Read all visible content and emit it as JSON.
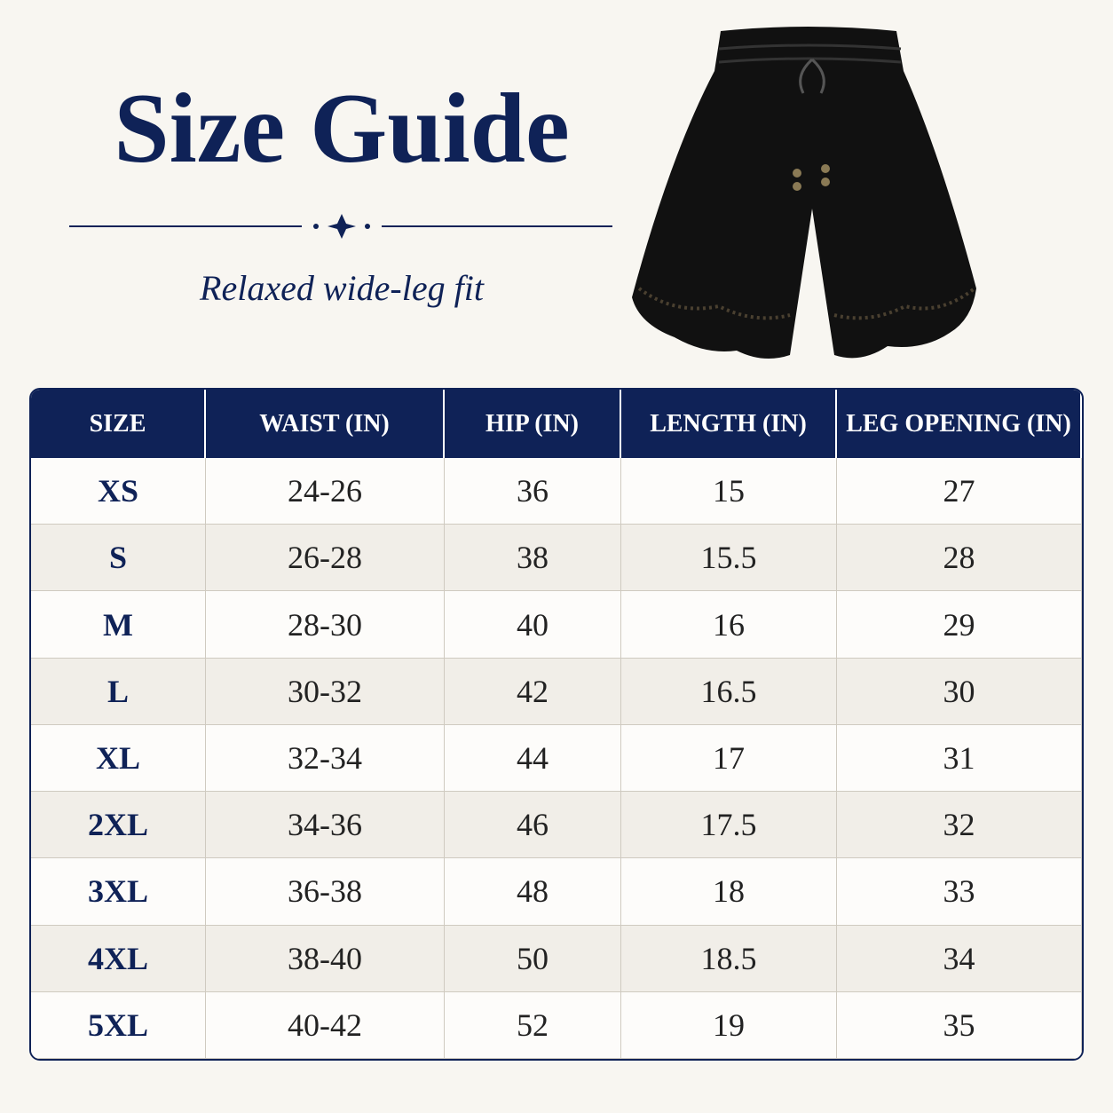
{
  "header": {
    "title": "Size Guide",
    "subtitle": "Relaxed wide-leg fit"
  },
  "table": {
    "columns": [
      "SIZE",
      "WAIST (IN)",
      "HIP (IN)",
      "LENGTH (IN)",
      "LEG OPENING (IN)"
    ],
    "rows": [
      [
        "XS",
        "24-26",
        "36",
        "15",
        "27"
      ],
      [
        "S",
        "26-28",
        "38",
        "15.5",
        "28"
      ],
      [
        "M",
        "28-30",
        "40",
        "16",
        "29"
      ],
      [
        "L",
        "30-32",
        "42",
        "16.5",
        "30"
      ],
      [
        "XL",
        "32-34",
        "44",
        "17",
        "31"
      ],
      [
        "2XL",
        "34-36",
        "46",
        "17.5",
        "32"
      ],
      [
        "3XL",
        "36-38",
        "48",
        "18",
        "33"
      ],
      [
        "4XL",
        "38-40",
        "50",
        "18.5",
        "34"
      ],
      [
        "5XL",
        "40-42",
        "52",
        "19",
        "35"
      ]
    ]
  }
}
